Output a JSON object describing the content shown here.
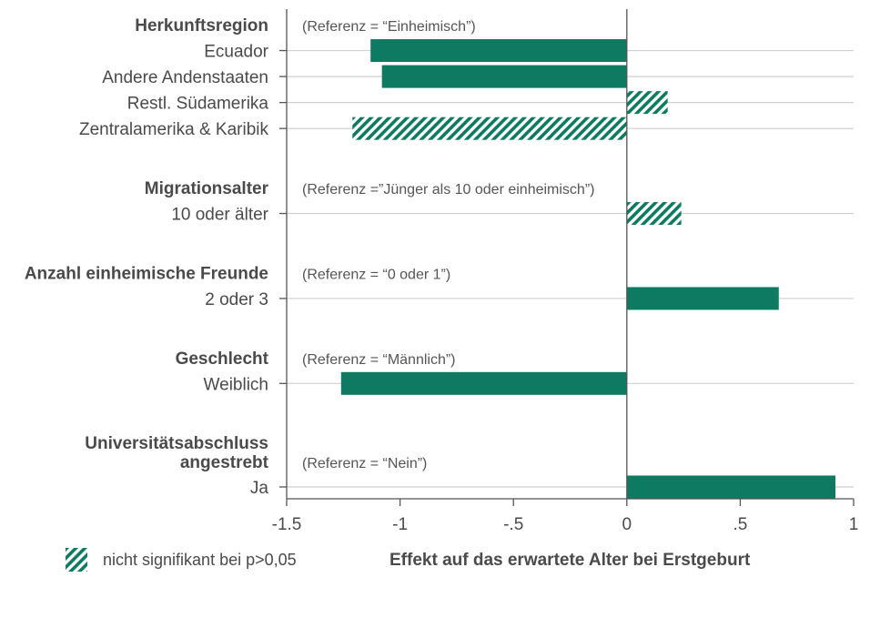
{
  "chart_data": {
    "type": "bar",
    "orientation": "horizontal",
    "xlabel": "Effekt auf das erwartete Alter bei Erstgeburt",
    "xlim": [
      -1.5,
      1
    ],
    "xticks": [
      "-1.5",
      "-1",
      "-.5",
      "0",
      ".5",
      "1"
    ],
    "xtick_values": [
      -1.5,
      -1,
      -0.5,
      0,
      0.5,
      1
    ],
    "grid": "horizontal",
    "legend": {
      "label": "nicht signifikant bei p>0,05",
      "placement": "bottom-left"
    },
    "colors": {
      "bar": "#0e7a62",
      "grid": "#cfcfcf",
      "axis": "#555555"
    },
    "groups": [
      {
        "title_lines": [
          "Herkunftsregion"
        ],
        "reference": "(Referenz = “Einheimisch”)",
        "categories": [
          {
            "label": "Ecuador",
            "value": -1.13,
            "significant": true
          },
          {
            "label": "Andere Andenstaaten",
            "value": -1.08,
            "significant": true
          },
          {
            "label": "Restl. Südamerika",
            "value": 0.18,
            "significant": false
          },
          {
            "label": "Zentralamerika & Karibik",
            "value": -1.21,
            "significant": false
          }
        ]
      },
      {
        "title_lines": [
          "Migrationsalter"
        ],
        "reference": "(Referenz =”Jünger als 10 oder einheimisch”)",
        "categories": [
          {
            "label": "10 oder älter",
            "value": 0.24,
            "significant": false
          }
        ]
      },
      {
        "title_lines": [
          "Anzahl einheimische Freunde"
        ],
        "reference": "(Referenz = “0 oder 1”)",
        "categories": [
          {
            "label": "2 oder 3",
            "value": 0.67,
            "significant": true
          }
        ]
      },
      {
        "title_lines": [
          "Geschlecht"
        ],
        "reference": "(Referenz = “Männlich”)",
        "categories": [
          {
            "label": "Weiblich",
            "value": -1.26,
            "significant": true
          }
        ]
      },
      {
        "title_lines": [
          "Universitätsabschluss",
          "angestrebt"
        ],
        "reference": "(Referenz = “Nein”)",
        "categories": [
          {
            "label": "Ja",
            "value": 0.92,
            "significant": true
          }
        ]
      }
    ]
  }
}
